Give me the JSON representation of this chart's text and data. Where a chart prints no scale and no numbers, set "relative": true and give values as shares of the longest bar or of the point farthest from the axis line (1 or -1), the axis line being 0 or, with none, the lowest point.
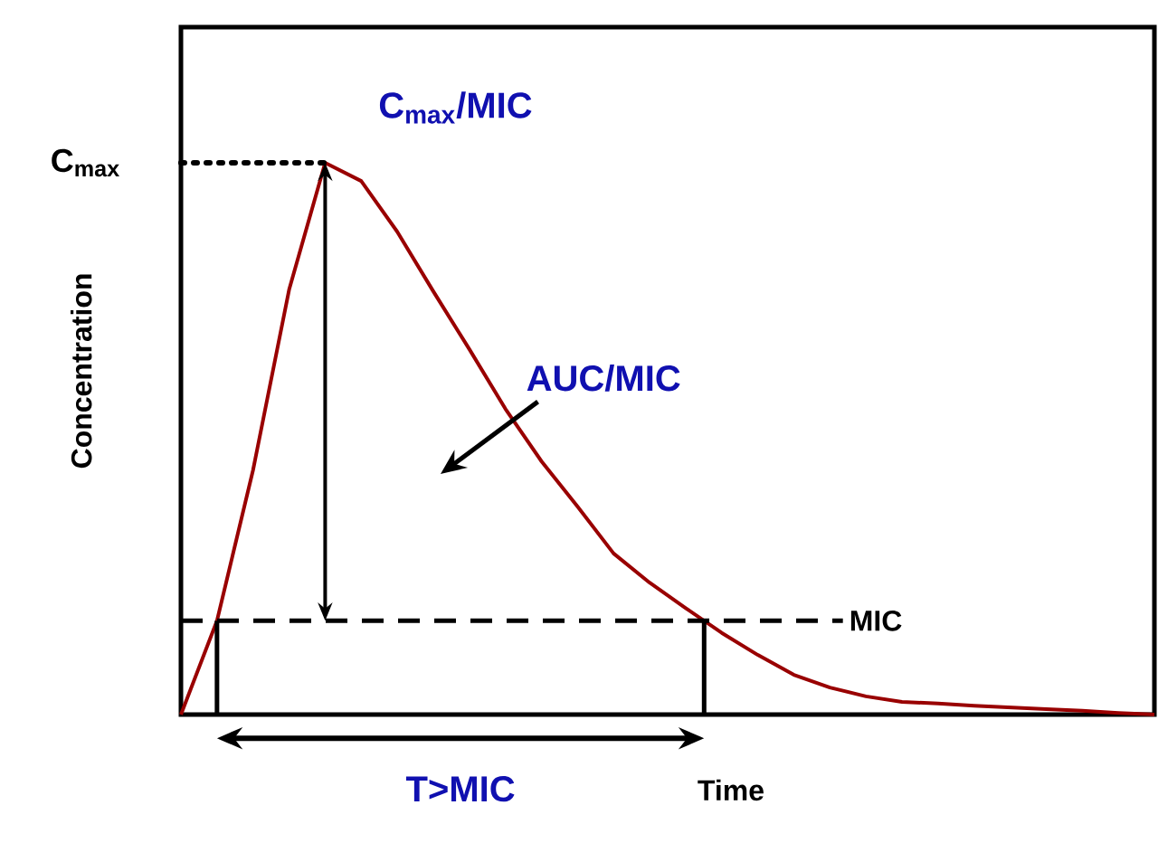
{
  "chart_data": {
    "type": "line",
    "relative": true,
    "xlabel": "Time",
    "ylabel": "Concentration",
    "categories": [
      null,
      null,
      null,
      null,
      null,
      null,
      null,
      null,
      null,
      null,
      null,
      null,
      null,
      null,
      null,
      null,
      null,
      null,
      null,
      null,
      null,
      null,
      null,
      null,
      null,
      null,
      null,
      null
    ],
    "series": [
      {
        "color": "#990000",
        "values": [
          0,
          0.17,
          0.443,
          0.77,
          1.0,
          0.967,
          0.875,
          0.767,
          0.662,
          0.554,
          0.459,
          0.377,
          0.292,
          0.239,
          0.193,
          0.148,
          0.108,
          0.072,
          0.049,
          0.033,
          0.023,
          0.02,
          0.016,
          0.013,
          0.01,
          0.007,
          0.003,
          0
        ]
      }
    ],
    "ref_lines": [
      {
        "axis": "y",
        "value": 1.0,
        "label": "C$_{max}$",
        "line_style": "dotted",
        "color": "#000000"
      },
      {
        "axis": "y",
        "value": 0.17,
        "label": "MIC",
        "line_style": "dashed",
        "color": "#000000"
      }
    ],
    "annotations": [
      "C$_{max}$/MIC",
      "AUC/MIC",
      "T>MIC"
    ]
  }
}
